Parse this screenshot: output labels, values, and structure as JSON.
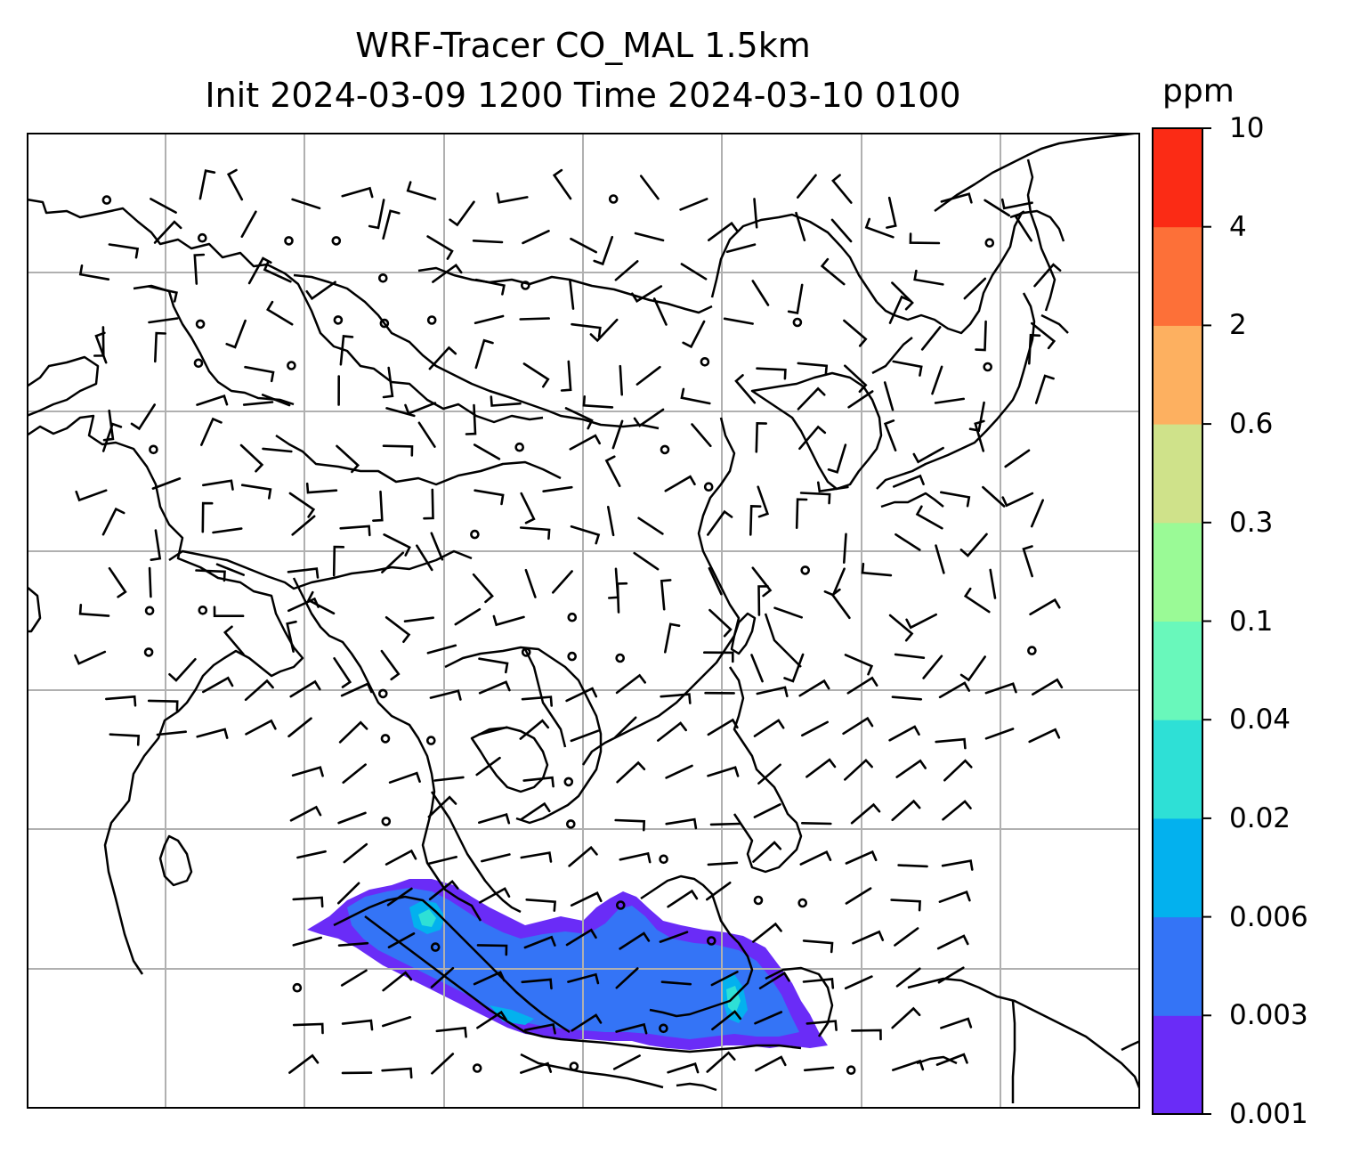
{
  "title": {
    "line1": "WRF-Tracer CO_MAL 1.5km",
    "line2": "Init 2024-03-09 1200 Time 2024-03-10 0100"
  },
  "colorbar": {
    "unit": "ppm",
    "levels": [
      "0.001",
      "0.003",
      "0.006",
      "0.02",
      "0.04",
      "0.1",
      "0.3",
      "0.6",
      "2",
      "4",
      "10"
    ],
    "colors": [
      "#6a2cf7",
      "#3474f6",
      "#03b1ee",
      "#2ee0d6",
      "#69f8bb",
      "#9afa96",
      "#cfe28a",
      "#fdb060",
      "#fd7038",
      "#fb2b15"
    ]
  },
  "map": {
    "coastline_color": "#000000",
    "grid_color": "#b0b0b0",
    "land_color": "#ffffff",
    "tracer_field": "CO_MAL",
    "overlay": "wind-barbs"
  }
}
